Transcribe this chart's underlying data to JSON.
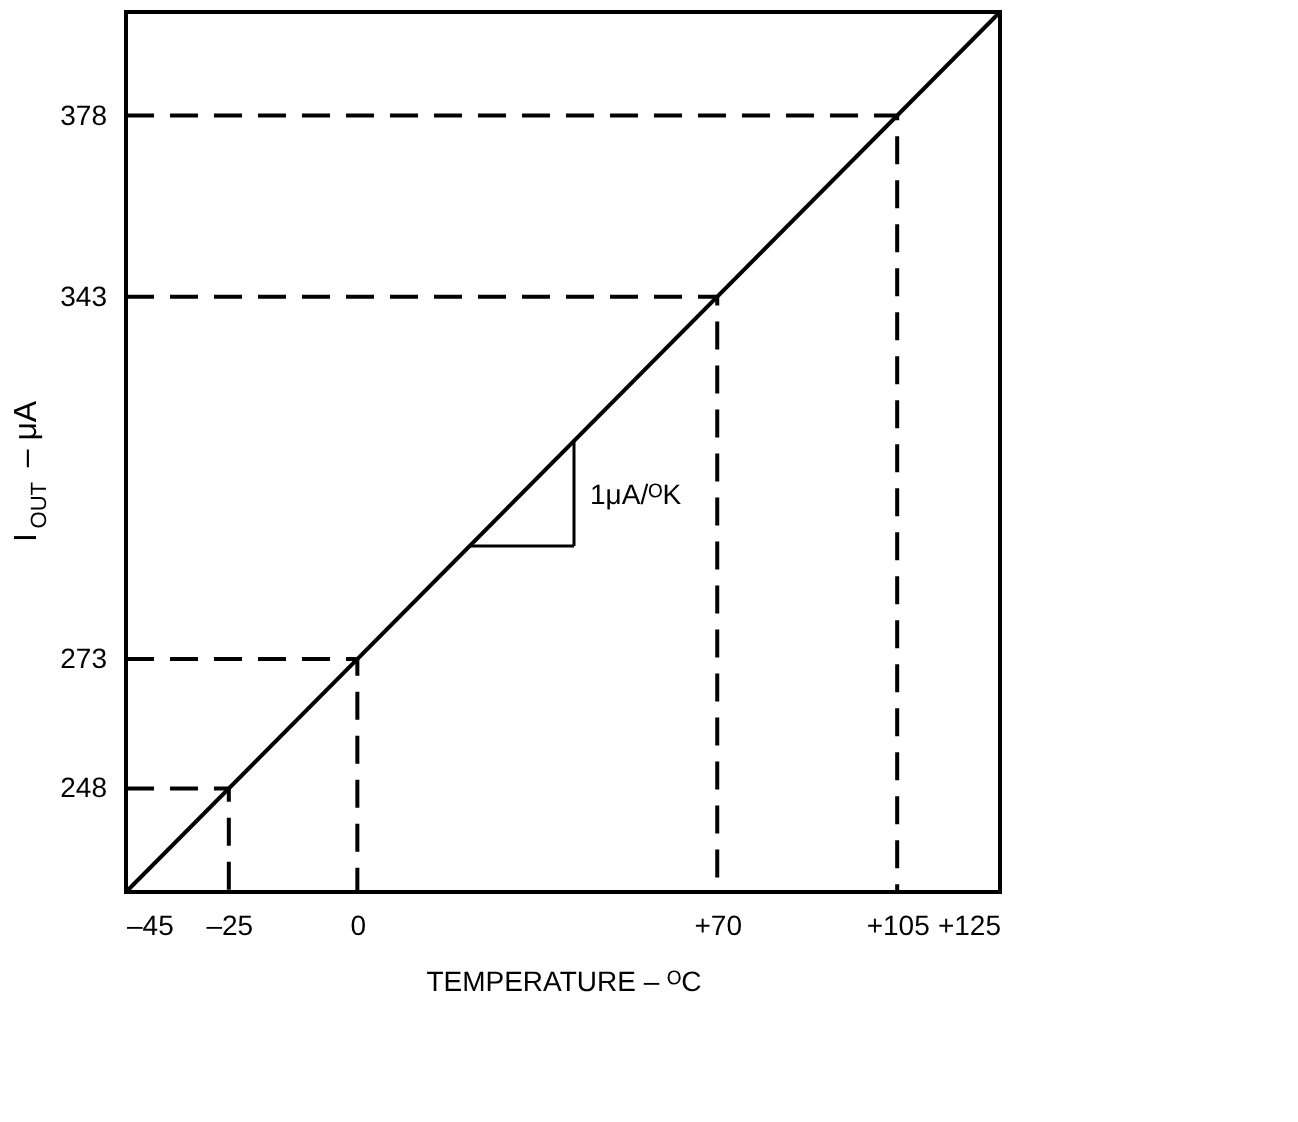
{
  "chart_data": {
    "type": "line",
    "xlabel": "TEMPERATURE – ᴼC",
    "ylabel": "I$_{OUT}$ – μA",
    "xlim": [
      -45,
      125
    ],
    "ylim": [
      228,
      398
    ],
    "xticks": [
      {
        "value": -45,
        "label": "–45"
      },
      {
        "value": -25,
        "label": "–25"
      },
      0,
      {
        "value": 70,
        "label": "+70"
      },
      {
        "value": 105,
        "label": "+105"
      },
      {
        "value": 125,
        "label": "+125"
      }
    ],
    "yticks": [
      248,
      273,
      343,
      378
    ],
    "series": [
      {
        "color": "#000000",
        "line_style": "solid",
        "x": [
          -45,
          125
        ],
        "values": [
          228,
          398
        ]
      },
      {
        "color": "#000000",
        "line_style": "dashed",
        "x": [
          -45,
          -25,
          -25
        ],
        "values": [
          248,
          248,
          228
        ]
      },
      {
        "color": "#000000",
        "line_style": "dashed",
        "x": [
          -45,
          0,
          0
        ],
        "values": [
          273,
          273,
          228
        ]
      },
      {
        "color": "#000000",
        "line_style": "dashed",
        "x": [
          -45,
          70,
          70
        ],
        "values": [
          343,
          343,
          228
        ]
      },
      {
        "color": "#000000",
        "line_style": "dashed",
        "x": [
          -45,
          105,
          105
        ],
        "values": [
          378,
          378,
          228
        ]
      }
    ],
    "annotations": [
      "1μA/ᴼK"
    ],
    "grid": false
  }
}
